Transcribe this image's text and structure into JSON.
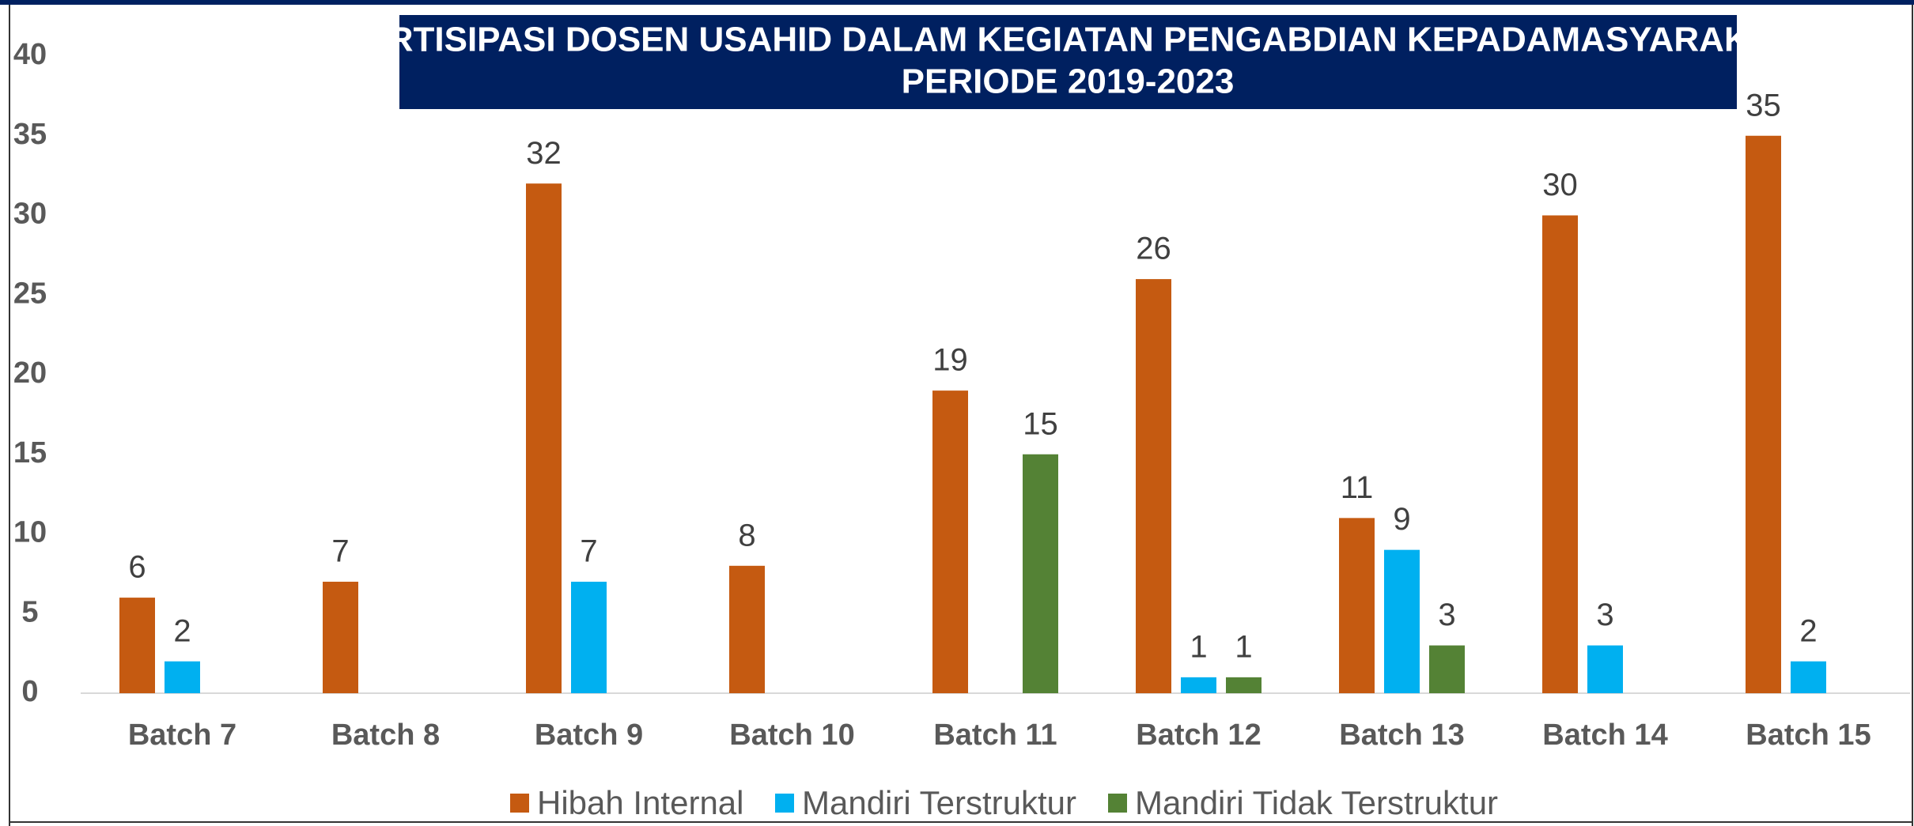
{
  "chart_data": {
    "type": "bar",
    "title": "PARTISIPASI DOSEN USAHID DALAM KEGIATAN PENGABDIAN KEPADAMASYARAKAT",
    "subtitle": "PERIODE 2019-2023",
    "categories": [
      "Batch 7",
      "Batch 8",
      "Batch 9",
      "Batch 10",
      "Batch 11",
      "Batch 12",
      "Batch 13",
      "Batch 14",
      "Batch 15"
    ],
    "series": [
      {
        "name": "Hibah Internal",
        "color": "#C55A11",
        "values": [
          6,
          7,
          32,
          8,
          19,
          26,
          11,
          30,
          35
        ]
      },
      {
        "name": "Mandiri Terstruktur",
        "color": "#00B0F0",
        "values": [
          2,
          null,
          7,
          null,
          null,
          1,
          9,
          3,
          2
        ]
      },
      {
        "name": "Mandiri Tidak Terstruktur",
        "color": "#548235",
        "values": [
          null,
          null,
          null,
          null,
          15,
          1,
          3,
          null,
          null
        ]
      }
    ],
    "ylim": [
      0,
      40
    ],
    "yticks": [
      0,
      5,
      10,
      15,
      20,
      25,
      30,
      35,
      40
    ],
    "grid": false,
    "legend": "bottom"
  }
}
